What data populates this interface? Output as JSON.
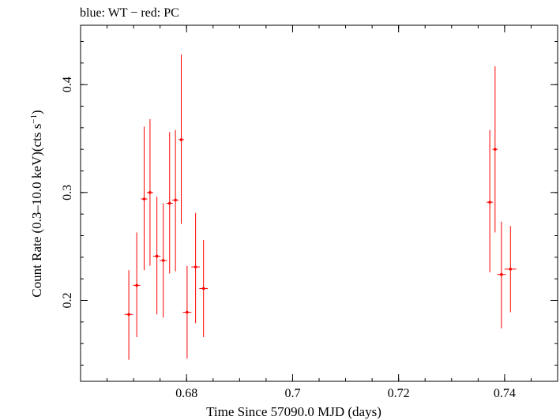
{
  "chart_data": {
    "type": "scatter",
    "title": "blue: WT − red: PC",
    "xlabel": "Time Since 57090.0 MJD (days)",
    "ylabel_main": "Count Rate (0.3–10.0 keV)(cts s",
    "ylabel_sup": "−1",
    "ylabel_close": ")",
    "xlim": [
      0.66,
      0.75
    ],
    "ylim": [
      0.125,
      0.455
    ],
    "x_major_ticks": [
      0.68,
      0.7,
      0.72,
      0.74
    ],
    "x_tick_labels": [
      "0.68",
      "0.7",
      "0.72",
      "0.74"
    ],
    "x_minor_step": 0.005,
    "y_major_ticks": [
      0.2,
      0.3,
      0.4
    ],
    "y_tick_labels": [
      "0.2",
      "0.3",
      "0.4"
    ],
    "y_minor_step": 0.02,
    "grid": false,
    "series": [
      {
        "color": "#ff0000",
        "points": [
          {
            "x": 0.6691,
            "xerr": 0.0008,
            "y": 0.187,
            "ylo": 0.145,
            "yhi": 0.228
          },
          {
            "x": 0.6706,
            "xerr": 0.0007,
            "y": 0.214,
            "ylo": 0.166,
            "yhi": 0.263
          },
          {
            "x": 0.672,
            "xerr": 0.0006,
            "y": 0.294,
            "ylo": 0.228,
            "yhi": 0.361
          },
          {
            "x": 0.6731,
            "xerr": 0.0006,
            "y": 0.3,
            "ylo": 0.232,
            "yhi": 0.368
          },
          {
            "x": 0.6744,
            "xerr": 0.0007,
            "y": 0.241,
            "ylo": 0.187,
            "yhi": 0.296
          },
          {
            "x": 0.6756,
            "xerr": 0.0007,
            "y": 0.237,
            "ylo": 0.184,
            "yhi": 0.29
          },
          {
            "x": 0.6768,
            "xerr": 0.0006,
            "y": 0.29,
            "ylo": 0.225,
            "yhi": 0.356
          },
          {
            "x": 0.6779,
            "xerr": 0.0006,
            "y": 0.293,
            "ylo": 0.227,
            "yhi": 0.358
          },
          {
            "x": 0.679,
            "xerr": 0.0005,
            "y": 0.349,
            "ylo": 0.271,
            "yhi": 0.428
          },
          {
            "x": 0.6801,
            "xerr": 0.0008,
            "y": 0.189,
            "ylo": 0.146,
            "yhi": 0.232
          },
          {
            "x": 0.6817,
            "xerr": 0.0008,
            "y": 0.231,
            "ylo": 0.179,
            "yhi": 0.281
          },
          {
            "x": 0.6832,
            "xerr": 0.0008,
            "y": 0.211,
            "ylo": 0.166,
            "yhi": 0.256
          },
          {
            "x": 0.7372,
            "xerr": 0.0006,
            "y": 0.291,
            "ylo": 0.226,
            "yhi": 0.358
          },
          {
            "x": 0.7382,
            "xerr": 0.0005,
            "y": 0.34,
            "ylo": 0.263,
            "yhi": 0.417
          },
          {
            "x": 0.7394,
            "xerr": 0.0008,
            "y": 0.224,
            "ylo": 0.174,
            "yhi": 0.273
          },
          {
            "x": 0.7411,
            "xerr": 0.0011,
            "y": 0.229,
            "ylo": 0.189,
            "yhi": 0.269
          }
        ]
      }
    ]
  }
}
